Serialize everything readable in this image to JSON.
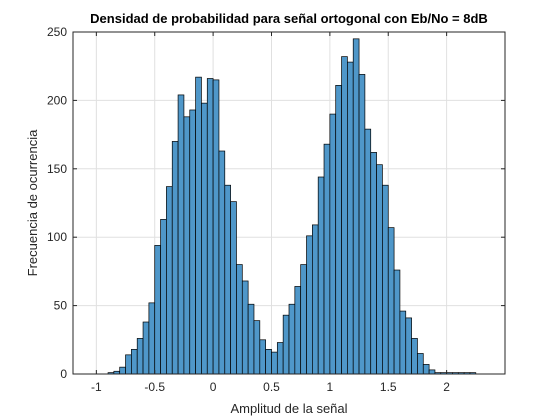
{
  "chart_data": {
    "type": "bar",
    "title": "Densidad de probabilidad para señal ortogonal con Eb/No = 8dB",
    "xlabel": "Amplitud de la señal",
    "ylabel": "Frecuencia de ocurrencia",
    "xlim": [
      -1.2,
      2.5
    ],
    "ylim": [
      0,
      250
    ],
    "xticks": [
      -1,
      -0.5,
      0,
      0.5,
      1,
      1.5,
      2
    ],
    "xtick_labels": [
      "-1",
      "-0.5",
      "0",
      "0.5",
      "1",
      "1.5",
      "2"
    ],
    "yticks": [
      0,
      50,
      100,
      150,
      200,
      250
    ],
    "ytick_labels": [
      "0",
      "50",
      "100",
      "150",
      "200",
      "250"
    ],
    "grid": true,
    "bar_color": "#4f97c9",
    "bin_width": 0.05,
    "bin_left_edges": [
      -0.9,
      -0.85,
      -0.8,
      -0.75,
      -0.7,
      -0.65,
      -0.6,
      -0.55,
      -0.5,
      -0.45,
      -0.4,
      -0.35,
      -0.3,
      -0.25,
      -0.2,
      -0.15,
      -0.1,
      -0.05,
      0.0,
      0.05,
      0.1,
      0.15,
      0.2,
      0.25,
      0.3,
      0.35,
      0.4,
      0.45,
      0.5,
      0.55,
      0.6,
      0.65,
      0.7,
      0.75,
      0.8,
      0.85,
      0.9,
      0.95,
      1.0,
      1.05,
      1.1,
      1.15,
      1.2,
      1.25,
      1.3,
      1.35,
      1.4,
      1.45,
      1.5,
      1.55,
      1.6,
      1.65,
      1.7,
      1.75,
      1.8,
      1.85,
      1.9,
      1.95,
      2.0,
      2.05,
      2.1,
      2.15,
      2.2
    ],
    "values": [
      1,
      2,
      5,
      14,
      18,
      26,
      38,
      52,
      94,
      113,
      137,
      170,
      204,
      188,
      193,
      217,
      198,
      216,
      215,
      163,
      138,
      126,
      80,
      68,
      51,
      39,
      25,
      18,
      16,
      23,
      43,
      51,
      64,
      80,
      101,
      109,
      144,
      168,
      190,
      211,
      232,
      228,
      245,
      219,
      179,
      162,
      153,
      138,
      107,
      76,
      46,
      41,
      26,
      15,
      7,
      3,
      1,
      1,
      1,
      1,
      1,
      1,
      1
    ]
  }
}
